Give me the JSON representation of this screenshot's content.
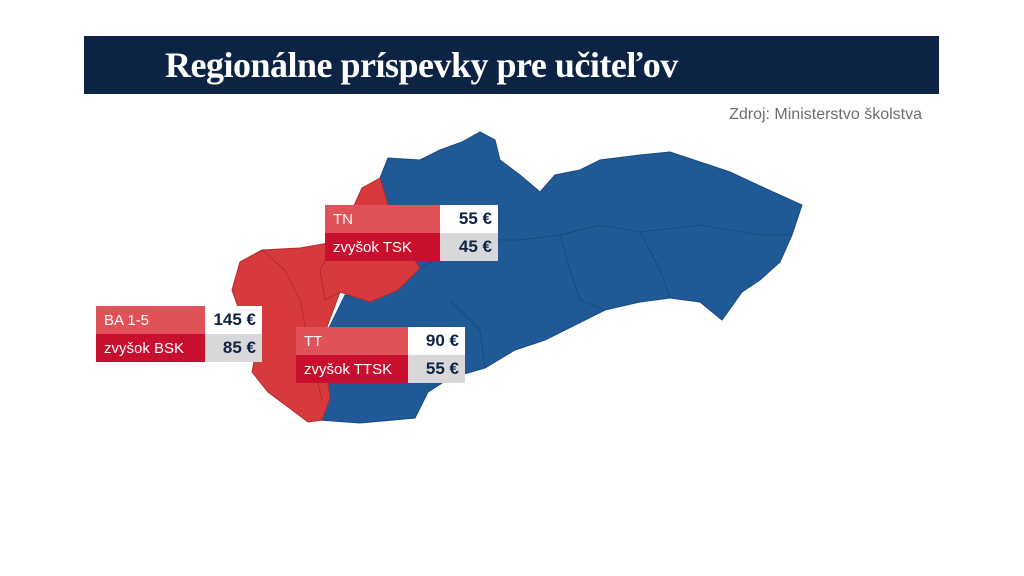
{
  "header": {
    "title": "Regionálne príspevky pre učiteľov",
    "source": "Zdroj: Ministerstvo školstva"
  },
  "regions": [
    {
      "rows": [
        {
          "label": "TN",
          "value": "55 €"
        },
        {
          "label": "zvyšok TSK",
          "value": "45 €"
        }
      ]
    },
    {
      "rows": [
        {
          "label": "BA 1-5",
          "value": "145 €"
        },
        {
          "label": "zvyšok BSK",
          "value": "85 €"
        }
      ]
    },
    {
      "rows": [
        {
          "label": "TT",
          "value": "90 €"
        },
        {
          "label": "zvyšok TTSK",
          "value": "55 €"
        }
      ]
    }
  ]
}
